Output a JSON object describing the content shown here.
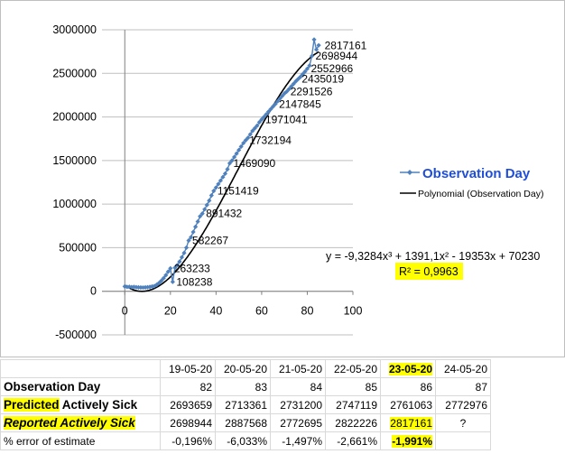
{
  "chart_data": {
    "type": "line",
    "xlim": [
      -10,
      100
    ],
    "ylim": [
      -500000,
      3000000
    ],
    "xticks": [
      "0",
      "20",
      "40",
      "60",
      "80",
      "100"
    ],
    "yticks": [
      "-500000",
      "0",
      "500000",
      "1000000",
      "1500000",
      "2000000",
      "2500000",
      "3000000"
    ],
    "grid": "horizontal",
    "legend_position": "right",
    "series": [
      {
        "name": "Observation Day",
        "color": "#4f81bd",
        "marker": "diamond",
        "x": [
          0,
          1,
          2,
          3,
          4,
          5,
          6,
          7,
          8,
          9,
          10,
          11,
          12,
          13,
          14,
          15,
          16,
          17,
          18,
          19,
          20,
          21,
          22,
          23,
          24,
          25,
          26,
          27,
          28,
          29,
          30,
          31,
          32,
          33,
          34,
          35,
          36,
          37,
          38,
          39,
          40,
          41,
          42,
          43,
          44,
          45,
          46,
          47,
          48,
          49,
          50,
          51,
          52,
          53,
          54,
          55,
          56,
          57,
          58,
          59,
          60,
          61,
          62,
          63,
          64,
          65,
          66,
          67,
          68,
          69,
          70,
          71,
          72,
          73,
          74,
          75,
          76,
          77,
          78,
          79,
          80,
          81,
          82,
          83,
          84,
          85
        ],
        "y": [
          55000,
          50000,
          52000,
          48000,
          50000,
          47000,
          45000,
          44000,
          43000,
          45000,
          47000,
          50000,
          55000,
          60000,
          75000,
          95000,
          120000,
          150000,
          185000,
          225000,
          263233,
          108238,
          270000,
          300000,
          340000,
          390000,
          440000,
          500000,
          582267,
          620000,
          680000,
          740000,
          800000,
          860000,
          891432,
          940000,
          990000,
          1040000,
          1100000,
          1151419,
          1190000,
          1230000,
          1270000,
          1310000,
          1350000,
          1400000,
          1469090,
          1500000,
          1540000,
          1580000,
          1620000,
          1660000,
          1700000,
          1732194,
          1760000,
          1800000,
          1840000,
          1870000,
          1900000,
          1940000,
          1971041,
          2000000,
          2030000,
          2060000,
          2090000,
          2120000,
          2147845,
          2180000,
          2210000,
          2240000,
          2270000,
          2291526,
          2320000,
          2350000,
          2380000,
          2410000,
          2435019,
          2460000,
          2490000,
          2520000,
          2552966,
          2590000,
          2698944,
          2887568,
          2772695,
          2822226
        ]
      },
      {
        "name": "Polynomial (Observation Day)",
        "color": "#000000",
        "poly": [
          -9.3284,
          1391.1,
          -19353,
          70230
        ]
      }
    ],
    "data_labels": [
      {
        "x": 20,
        "y": 263233,
        "text": "263233"
      },
      {
        "x": 21,
        "y": 108238,
        "text": "108238"
      },
      {
        "x": 28,
        "y": 582267,
        "text": "582267"
      },
      {
        "x": 34,
        "y": 891432,
        "text": "891432"
      },
      {
        "x": 39,
        "y": 1151419,
        "text": "1151419"
      },
      {
        "x": 46,
        "y": 1469090,
        "text": "1469090"
      },
      {
        "x": 53,
        "y": 1732194,
        "text": "1732194"
      },
      {
        "x": 60,
        "y": 1971041,
        "text": "1971041"
      },
      {
        "x": 66,
        "y": 2147845,
        "text": "2147845"
      },
      {
        "x": 71,
        "y": 2291526,
        "text": "2291526"
      },
      {
        "x": 76,
        "y": 2435019,
        "text": "2435019"
      },
      {
        "x": 80,
        "y": 2552966,
        "text": "2552966"
      },
      {
        "x": 82,
        "y": 2698944,
        "text": "2698944"
      },
      {
        "x": 86,
        "y": 2817161,
        "text": "2817161"
      }
    ],
    "equation": "y = -9,3284x³ + 1391,1x² - 19353x + 70230",
    "r_squared": "R² = 0,9963",
    "highlight_color": "#ffff00"
  },
  "table": {
    "dates": [
      "19-05-20",
      "20-05-20",
      "21-05-20",
      "22-05-20",
      "23-05-20",
      "24-05-20"
    ],
    "rows": [
      {
        "label": "Observation Day",
        "values": [
          "82",
          "83",
          "84",
          "85",
          "86",
          "87"
        ]
      },
      {
        "label_parts": [
          "Predicted",
          " Actively Sick"
        ],
        "values": [
          "2693659",
          "2713361",
          "2731200",
          "2747119",
          "2761063",
          "2772976"
        ]
      },
      {
        "label": "Reported Actively Sick",
        "values": [
          "2698944",
          "2887568",
          "2772695",
          "2822226",
          "2817161",
          "?"
        ]
      },
      {
        "label": "% error of estimate",
        "values": [
          "-0,196%",
          "-6,033%",
          "-1,497%",
          "-2,661%",
          "-1,991%",
          ""
        ]
      }
    ]
  }
}
